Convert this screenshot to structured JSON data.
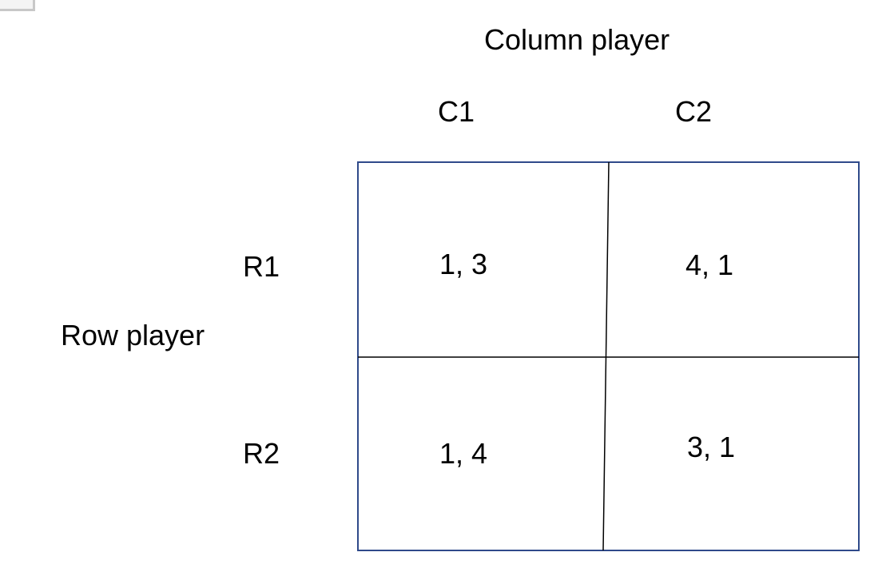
{
  "column_player_label": "Column player",
  "row_player_label": "Row player",
  "columns": [
    "C1",
    "C2"
  ],
  "rows": [
    "R1",
    "R2"
  ],
  "payoffs": [
    [
      "1, 3",
      "4, 1"
    ],
    [
      "1, 4",
      "3, 1"
    ]
  ],
  "colors": {
    "border": "#2f4a8a",
    "divider": "#000000",
    "text": "#000000"
  }
}
